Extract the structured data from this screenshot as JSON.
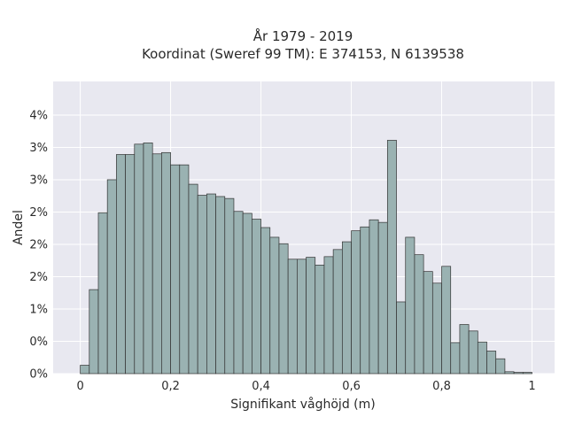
{
  "chart_data": {
    "type": "bar",
    "title": "År 1979 - 2019",
    "subtitle": "Koordinat (Sweref 99 TM): E 374153, N 6139538",
    "xlabel": "Signifikant våghöjd (m)",
    "ylabel": "Andel",
    "xlim": [
      -0.06,
      1.05
    ],
    "ylim": [
      0,
      0.0452
    ],
    "x_ticks": [
      {
        "value": 0,
        "label": "0"
      },
      {
        "value": 0.2,
        "label": "0,2"
      },
      {
        "value": 0.4,
        "label": "0,4"
      },
      {
        "value": 0.6,
        "label": "0,6"
      },
      {
        "value": 0.8,
        "label": "0,8"
      },
      {
        "value": 1,
        "label": "1"
      }
    ],
    "y_ticks": [
      {
        "value": 0,
        "label": "0%"
      },
      {
        "value": 0.005,
        "label": "0%"
      },
      {
        "value": 0.01,
        "label": "1%"
      },
      {
        "value": 0.015,
        "label": "2%"
      },
      {
        "value": 0.02,
        "label": "2%"
      },
      {
        "value": 0.025,
        "label": "2%"
      },
      {
        "value": 0.03,
        "label": "3%"
      },
      {
        "value": 0.035,
        "label": "3%"
      },
      {
        "value": 0.04,
        "label": "4%"
      }
    ],
    "bin_width": 0.02,
    "bin_start": 0,
    "values": [
      0.0013,
      0.013,
      0.0249,
      0.03,
      0.0339,
      0.0339,
      0.0355,
      0.0357,
      0.034,
      0.0342,
      0.0323,
      0.0323,
      0.0293,
      0.0276,
      0.0278,
      0.0274,
      0.0271,
      0.0251,
      0.0248,
      0.0239,
      0.0226,
      0.0211,
      0.0201,
      0.0177,
      0.0177,
      0.018,
      0.0168,
      0.0181,
      0.0192,
      0.0204,
      0.0221,
      0.0227,
      0.0238,
      0.0234,
      0.0361,
      0.0111,
      0.0211,
      0.0184,
      0.0158,
      0.014,
      0.0166,
      0.0048,
      0.0076,
      0.0066,
      0.0049,
      0.0035,
      0.0023,
      0.0003,
      0.0002,
      0.0002
    ],
    "bar_fill": "#9ab2b2",
    "bar_stroke": "#333333",
    "plot_bg": "#e8e8f0",
    "grid": true
  }
}
